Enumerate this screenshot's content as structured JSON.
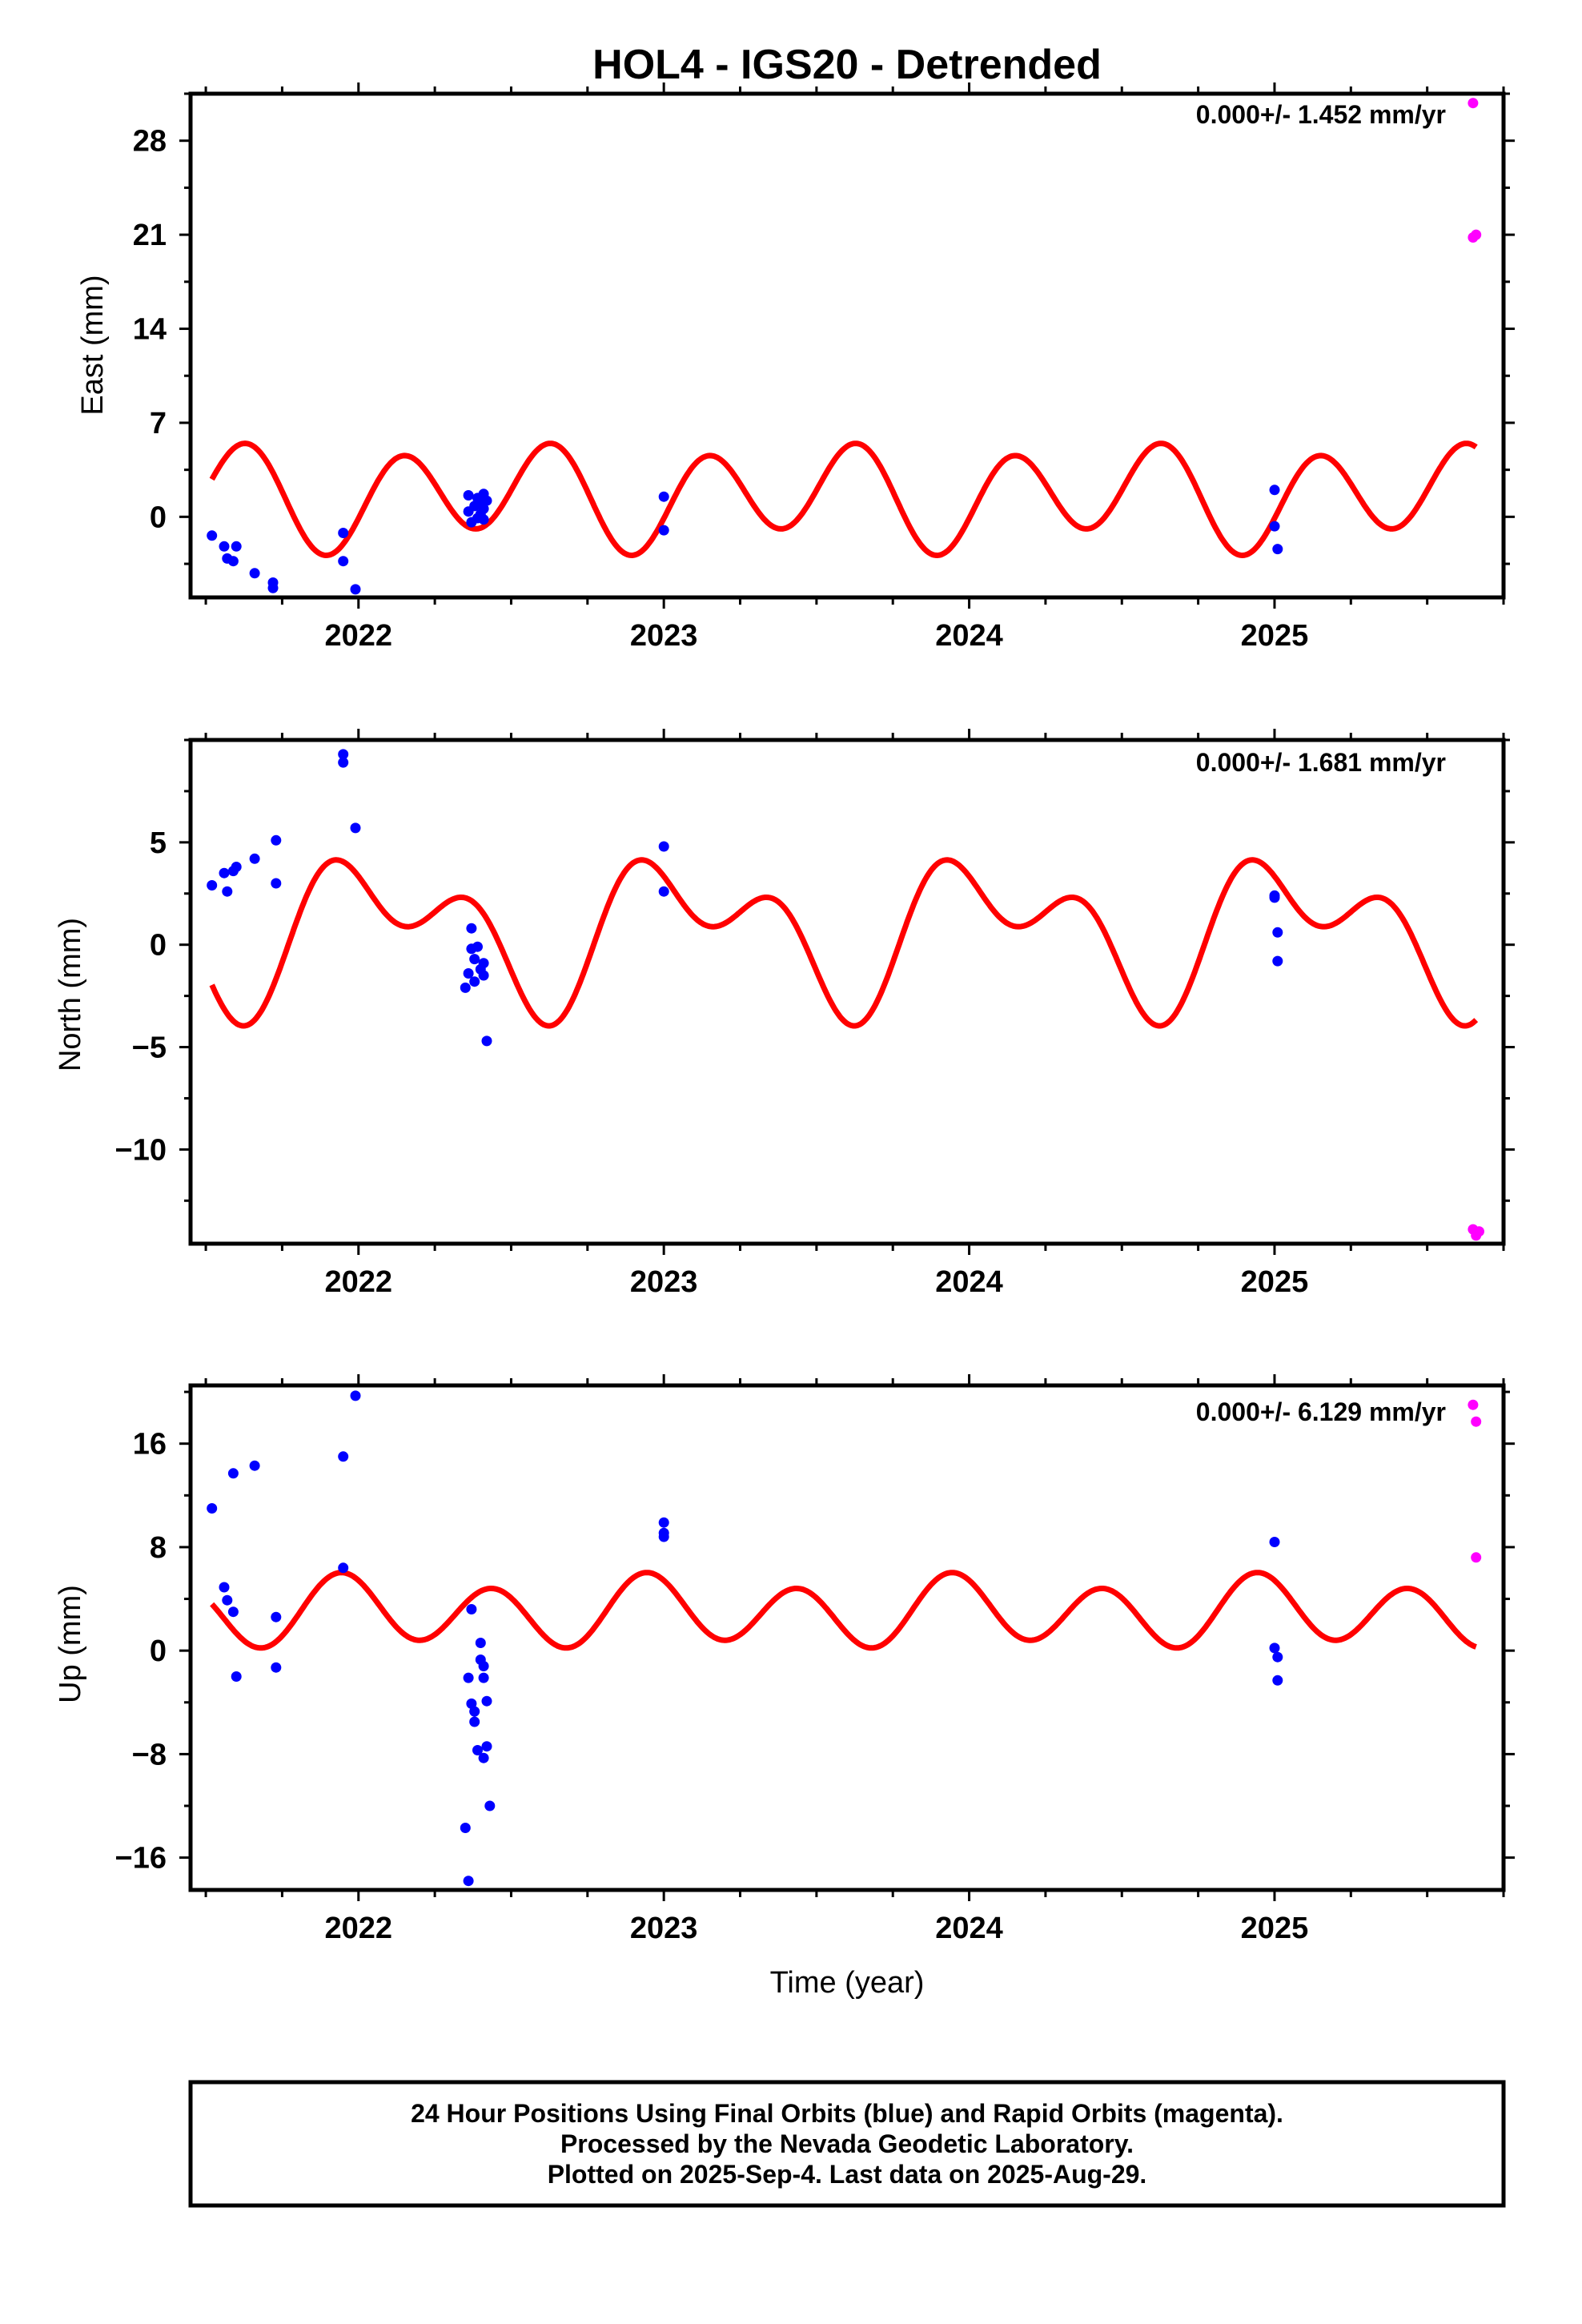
{
  "title": "HOL4 - IGS20 - Detrended",
  "xlabel": "Time (year)",
  "footer": {
    "line1": "24 Hour Positions Using Final Orbits (blue) and Rapid Orbits (magenta).",
    "line2": "Processed by the Nevada Geodetic Laboratory.",
    "line3": "Plotted on 2025-Sep-4. Last data on 2025-Aug-29."
  },
  "colors": {
    "final": "#0000ff",
    "rapid": "#ff00ff",
    "model": "#ff0000",
    "axes": "#000000"
  },
  "chart_data": [
    {
      "type": "scatter",
      "panel": "east",
      "ylabel": "East (mm)",
      "rate_text": "0.000+/- 1.452 mm/yr",
      "xlim": [
        2021.45,
        2025.75
      ],
      "ylim": [
        -6.0,
        31.5
      ],
      "yticks": [
        0,
        7,
        14,
        21,
        28
      ],
      "xticks": [
        2022,
        2023,
        2024,
        2025
      ],
      "series": [
        {
          "kind": "final",
          "points": [
            [
              2021.52,
              -1.4
            ],
            [
              2021.56,
              -2.2
            ],
            [
              2021.57,
              -3.1
            ],
            [
              2021.59,
              -3.3
            ],
            [
              2021.6,
              -2.2
            ],
            [
              2021.66,
              -4.2
            ],
            [
              2021.72,
              -4.9
            ],
            [
              2021.72,
              -5.3
            ],
            [
              2021.95,
              -1.2
            ],
            [
              2021.95,
              -3.3
            ],
            [
              2021.99,
              -5.4
            ],
            [
              2022.36,
              1.6
            ],
            [
              2022.36,
              0.4
            ],
            [
              2022.37,
              -0.4
            ],
            [
              2022.38,
              0.8
            ],
            [
              2022.39,
              1.4
            ],
            [
              2022.39,
              -0.1
            ],
            [
              2022.4,
              0.9
            ],
            [
              2022.4,
              0.2
            ],
            [
              2022.41,
              1.7
            ],
            [
              2022.41,
              0.6
            ],
            [
              2022.41,
              -0.2
            ],
            [
              2022.42,
              1.2
            ],
            [
              2023.0,
              1.5
            ],
            [
              2023.0,
              -1.0
            ],
            [
              2025.0,
              2.0
            ],
            [
              2025.0,
              -0.7
            ],
            [
              2025.01,
              -2.4
            ]
          ]
        },
        {
          "kind": "rapid",
          "points": [
            [
              2025.65,
              30.8
            ],
            [
              2025.65,
              20.8
            ],
            [
              2025.66,
              21.0
            ]
          ]
        }
      ],
      "model": {
        "mean": 1.55,
        "annual_cos": -1.05,
        "annual_sin": 0.28,
        "semi_cos": -0.62,
        "semi_sin": 3.37
      }
    },
    {
      "type": "scatter",
      "panel": "north",
      "ylabel": "North (mm)",
      "rate_text": "0.000+/- 1.681 mm/yr",
      "xlim": [
        2021.45,
        2025.75
      ],
      "ylim": [
        -14.6,
        10.0
      ],
      "yticks": [
        -10,
        -5,
        0,
        5
      ],
      "xticks": [
        2022,
        2023,
        2024,
        2025
      ],
      "series": [
        {
          "kind": "final",
          "points": [
            [
              2021.52,
              2.9
            ],
            [
              2021.56,
              3.5
            ],
            [
              2021.57,
              2.6
            ],
            [
              2021.59,
              3.6
            ],
            [
              2021.6,
              3.8
            ],
            [
              2021.66,
              4.2
            ],
            [
              2021.73,
              5.1
            ],
            [
              2021.73,
              3.0
            ],
            [
              2021.95,
              9.3
            ],
            [
              2021.95,
              8.9
            ],
            [
              2021.99,
              5.7
            ],
            [
              2022.35,
              -2.1
            ],
            [
              2022.36,
              -1.4
            ],
            [
              2022.37,
              -0.2
            ],
            [
              2022.37,
              0.8
            ],
            [
              2022.38,
              -0.7
            ],
            [
              2022.38,
              -1.8
            ],
            [
              2022.39,
              -0.1
            ],
            [
              2022.4,
              -1.2
            ],
            [
              2022.41,
              -1.5
            ],
            [
              2022.41,
              -0.9
            ],
            [
              2022.42,
              -4.7
            ],
            [
              2023.0,
              4.8
            ],
            [
              2023.0,
              2.6
            ],
            [
              2025.0,
              2.3
            ],
            [
              2025.0,
              2.4
            ],
            [
              2025.01,
              0.6
            ],
            [
              2025.01,
              -0.8
            ]
          ]
        },
        {
          "kind": "rapid",
          "points": [
            [
              2025.65,
              -13.9
            ],
            [
              2025.66,
              -14.2
            ],
            [
              2025.67,
              -14.0
            ]
          ]
        }
      ],
      "model": {
        "mean": 0.7,
        "annual_cos": 2.31,
        "annual_sin": 1.23,
        "semi_cos": 0.33,
        "semi_sin": -2.16
      }
    },
    {
      "type": "scatter",
      "panel": "up",
      "ylabel": "Up (mm)",
      "rate_text": "0.000+/- 6.129 mm/yr",
      "xlim": [
        2021.45,
        2025.75
      ],
      "ylim": [
        -18.5,
        20.5
      ],
      "yticks": [
        -16,
        -8,
        0,
        8,
        16
      ],
      "xticks": [
        2022,
        2023,
        2024,
        2025
      ],
      "series": [
        {
          "kind": "final",
          "points": [
            [
              2021.52,
              11.0
            ],
            [
              2021.56,
              4.9
            ],
            [
              2021.57,
              3.9
            ],
            [
              2021.59,
              13.7
            ],
            [
              2021.59,
              3.0
            ],
            [
              2021.6,
              -2.0
            ],
            [
              2021.66,
              14.3
            ],
            [
              2021.73,
              2.6
            ],
            [
              2021.73,
              -1.3
            ],
            [
              2021.95,
              15.0
            ],
            [
              2021.95,
              6.4
            ],
            [
              2021.99,
              19.7
            ],
            [
              2022.35,
              -13.7
            ],
            [
              2022.36,
              -2.1
            ],
            [
              2022.36,
              -17.8
            ],
            [
              2022.37,
              3.2
            ],
            [
              2022.37,
              -4.1
            ],
            [
              2022.38,
              -4.7
            ],
            [
              2022.38,
              -5.5
            ],
            [
              2022.39,
              -7.7
            ],
            [
              2022.4,
              0.6
            ],
            [
              2022.4,
              -0.7
            ],
            [
              2022.41,
              -8.3
            ],
            [
              2022.41,
              -2.1
            ],
            [
              2022.41,
              -1.2
            ],
            [
              2022.42,
              -3.9
            ],
            [
              2022.42,
              -7.4
            ],
            [
              2022.43,
              -12.0
            ],
            [
              2023.0,
              9.9
            ],
            [
              2023.0,
              9.1
            ],
            [
              2023.0,
              8.8
            ],
            [
              2025.0,
              8.4
            ],
            [
              2025.0,
              0.2
            ],
            [
              2025.01,
              -0.5
            ],
            [
              2025.01,
              -2.3
            ]
          ]
        },
        {
          "kind": "rapid",
          "points": [
            [
              2025.65,
              19.0
            ],
            [
              2025.66,
              17.7
            ],
            [
              2025.66,
              7.2
            ]
          ]
        }
      ],
      "model": {
        "mean": 2.97,
        "annual_cos": 0.68,
        "annual_sin": 0.05,
        "semi_cos": 1.78,
        "semi_sin": -1.68
      }
    }
  ]
}
